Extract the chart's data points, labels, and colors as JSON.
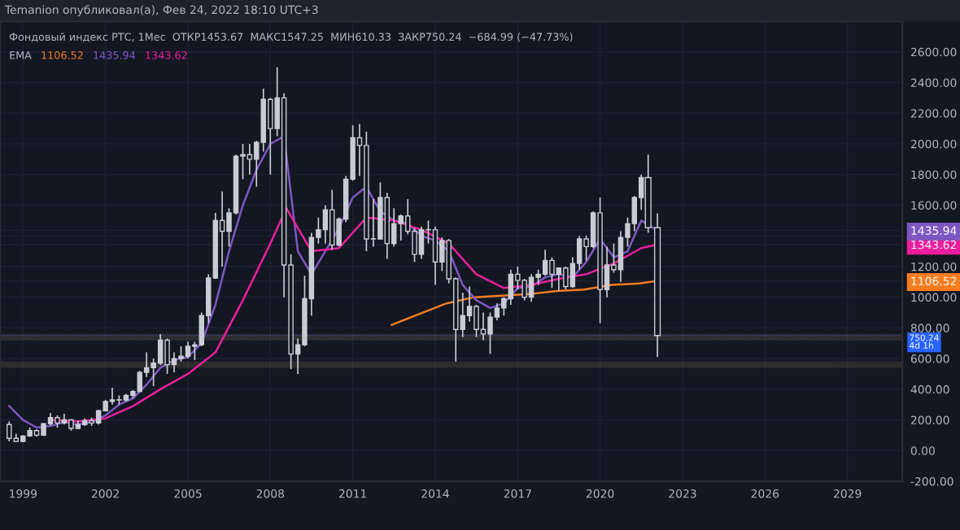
{
  "chart_data": {
    "type": "candlestick",
    "title": "Фондовый индекс РТС, 1Мес  ОТКР1453.67  МАКС1547.25  МИН610.33  ЗАКР750.24  −684.99 (−47.73%)",
    "subtitle": "Temanion опубликовал(а), Фев 24, 2022 18:10 UTC+3",
    "annotations": [
      "EMA"
    ],
    "color": "#c9ccd4",
    "x": [
      "1998-07",
      "1998-10",
      "1999-01",
      "1999-04",
      "1999-07",
      "1999-10",
      "2000-01",
      "2000-04",
      "2000-07",
      "2000-10",
      "2001-01",
      "2001-04",
      "2001-07",
      "2001-10",
      "2002-01",
      "2002-04",
      "2002-07",
      "2002-10",
      "2003-01",
      "2003-04",
      "2003-07",
      "2003-10",
      "2004-01",
      "2004-04",
      "2004-07",
      "2004-10",
      "2005-01",
      "2005-04",
      "2005-07",
      "2005-10",
      "2006-01",
      "2006-04",
      "2006-07",
      "2006-10",
      "2007-01",
      "2007-04",
      "2007-07",
      "2007-10",
      "2008-01",
      "2008-04",
      "2008-07",
      "2008-10",
      "2009-01",
      "2009-04",
      "2009-07",
      "2009-10",
      "2010-01",
      "2010-04",
      "2010-07",
      "2010-10",
      "2011-01",
      "2011-04",
      "2011-07",
      "2011-10",
      "2012-01",
      "2012-04",
      "2012-07",
      "2012-10",
      "2013-01",
      "2013-04",
      "2013-07",
      "2013-10",
      "2014-01",
      "2014-04",
      "2014-07",
      "2014-10",
      "2015-01",
      "2015-04",
      "2015-07",
      "2015-10",
      "2016-01",
      "2016-04",
      "2016-07",
      "2016-10",
      "2017-01",
      "2017-04",
      "2017-07",
      "2017-10",
      "2018-01",
      "2018-04",
      "2018-07",
      "2018-10",
      "2019-01",
      "2019-04",
      "2019-07",
      "2019-10",
      "2020-01",
      "2020-04",
      "2020-07",
      "2020-10",
      "2021-01",
      "2021-04",
      "2021-07",
      "2021-10",
      "2022-02"
    ],
    "ohlc": [
      [
        170,
        190,
        60,
        80
      ],
      [
        80,
        110,
        60,
        60
      ],
      [
        60,
        100,
        55,
        95
      ],
      [
        95,
        150,
        90,
        130
      ],
      [
        130,
        140,
        90,
        100
      ],
      [
        100,
        180,
        95,
        175
      ],
      [
        175,
        245,
        165,
        215
      ],
      [
        215,
        230,
        150,
        180
      ],
      [
        180,
        240,
        170,
        200
      ],
      [
        200,
        205,
        130,
        145
      ],
      [
        145,
        195,
        140,
        170
      ],
      [
        170,
        210,
        160,
        195
      ],
      [
        195,
        215,
        160,
        180
      ],
      [
        180,
        265,
        170,
        260
      ],
      [
        260,
        330,
        255,
        320
      ],
      [
        320,
        410,
        300,
        330
      ],
      [
        330,
        360,
        300,
        330
      ],
      [
        330,
        370,
        320,
        360
      ],
      [
        360,
        395,
        340,
        385
      ],
      [
        385,
        520,
        380,
        510
      ],
      [
        510,
        640,
        480,
        540
      ],
      [
        540,
        600,
        420,
        570
      ],
      [
        570,
        760,
        560,
        720
      ],
      [
        720,
        730,
        500,
        560
      ],
      [
        560,
        640,
        510,
        600
      ],
      [
        600,
        680,
        580,
        615
      ],
      [
        615,
        710,
        600,
        680
      ],
      [
        680,
        710,
        590,
        690
      ],
      [
        690,
        900,
        680,
        880
      ],
      [
        880,
        1150,
        830,
        1125
      ],
      [
        1125,
        1550,
        1120,
        1500
      ],
      [
        1500,
        1690,
        1200,
        1430
      ],
      [
        1430,
        1580,
        1330,
        1550
      ],
      [
        1550,
        1930,
        1540,
        1920
      ],
      [
        1920,
        2000,
        1770,
        1930
      ],
      [
        1930,
        2000,
        1800,
        1900
      ],
      [
        1900,
        2020,
        1720,
        2010
      ],
      [
        2010,
        2360,
        1950,
        2290
      ],
      [
        2290,
        2300,
        1800,
        2100
      ],
      [
        2100,
        2500,
        2050,
        2300
      ],
      [
        2300,
        2330,
        1000,
        1210
      ],
      [
        1210,
        1280,
        530,
        630
      ],
      [
        630,
        730,
        500,
        690
      ],
      [
        690,
        1140,
        680,
        990
      ],
      [
        990,
        1420,
        880,
        1390
      ],
      [
        1390,
        1520,
        1350,
        1440
      ],
      [
        1440,
        1600,
        1350,
        1570
      ],
      [
        1570,
        1700,
        1310,
        1340
      ],
      [
        1340,
        1520,
        1330,
        1510
      ],
      [
        1510,
        1790,
        1490,
        1770
      ],
      [
        1770,
        2120,
        1760,
        2040
      ],
      [
        2040,
        2130,
        1790,
        1990
      ],
      [
        1990,
        2080,
        1300,
        1380
      ],
      [
        1380,
        1640,
        1330,
        1380
      ],
      [
        1380,
        1750,
        1380,
        1650
      ],
      [
        1650,
        1680,
        1250,
        1350
      ],
      [
        1350,
        1580,
        1330,
        1480
      ],
      [
        1480,
        1540,
        1370,
        1530
      ],
      [
        1530,
        1640,
        1410,
        1430
      ],
      [
        1430,
        1450,
        1230,
        1280
      ],
      [
        1280,
        1460,
        1250,
        1440
      ],
      [
        1440,
        1500,
        1350,
        1440
      ],
      [
        1440,
        1460,
        1080,
        1230
      ],
      [
        1230,
        1390,
        1170,
        1370
      ],
      [
        1370,
        1380,
        1090,
        1120
      ],
      [
        1120,
        1130,
        580,
        790
      ],
      [
        790,
        1030,
        740,
        880
      ],
      [
        880,
        1070,
        840,
        940
      ],
      [
        940,
        950,
        740,
        790
      ],
      [
        790,
        900,
        720,
        760
      ],
      [
        760,
        900,
        630,
        870
      ],
      [
        870,
        960,
        850,
        930
      ],
      [
        930,
        1000,
        880,
        990
      ],
      [
        990,
        1180,
        950,
        1150
      ],
      [
        1150,
        1200,
        1050,
        1110
      ],
      [
        1110,
        1120,
        980,
        1000
      ],
      [
        1000,
        1150,
        970,
        1130
      ],
      [
        1130,
        1180,
        1080,
        1150
      ],
      [
        1150,
        1310,
        1140,
        1240
      ],
      [
        1240,
        1260,
        1060,
        1150
      ],
      [
        1150,
        1190,
        1040,
        1190
      ],
      [
        1190,
        1200,
        1050,
        1070
      ],
      [
        1070,
        1260,
        1060,
        1220
      ],
      [
        1220,
        1400,
        1180,
        1380
      ],
      [
        1380,
        1400,
        1240,
        1330
      ],
      [
        1330,
        1560,
        1320,
        1550
      ],
      [
        1550,
        1650,
        830,
        1050
      ],
      [
        1050,
        1330,
        1000,
        1210
      ],
      [
        1210,
        1350,
        1160,
        1180
      ],
      [
        1180,
        1430,
        1100,
        1390
      ],
      [
        1390,
        1520,
        1330,
        1480
      ],
      [
        1480,
        1660,
        1430,
        1650
      ],
      [
        1650,
        1800,
        1570,
        1780
      ],
      [
        1780,
        1930,
        1420,
        1453.67
      ],
      [
        1453.67,
        1547.25,
        610.33,
        750.24
      ]
    ],
    "series": [
      {
        "type": "line",
        "name": "1106.52",
        "color": "#f57c1f",
        "x": [
          "2012-06",
          "2013-06",
          "2014-06",
          "2015-06",
          "2016-06",
          "2017-06",
          "2018-06",
          "2019-06",
          "2020-06",
          "2021-06",
          "2022-02"
        ],
        "values": [
          820,
          890,
          960,
          1000,
          1010,
          1020,
          1040,
          1050,
          1080,
          1090,
          1106.52
        ]
      },
      {
        "type": "line",
        "name": "1435.94",
        "color": "#7e57c2",
        "x": [
          "1998-07",
          "1999-01",
          "1999-07",
          "2000-01",
          "2000-07",
          "2001-01",
          "2001-07",
          "2002-01",
          "2002-07",
          "2003-01",
          "2003-07",
          "2004-01",
          "2004-07",
          "2005-01",
          "2005-07",
          "2006-01",
          "2006-07",
          "2007-01",
          "2007-07",
          "2008-01",
          "2008-07",
          "2009-01",
          "2009-07",
          "2010-01",
          "2010-07",
          "2011-01",
          "2011-07",
          "2012-01",
          "2012-07",
          "2013-01",
          "2013-07",
          "2014-01",
          "2014-07",
          "2015-01",
          "2015-07",
          "2016-01",
          "2016-07",
          "2017-01",
          "2017-07",
          "2018-01",
          "2018-07",
          "2019-01",
          "2019-07",
          "2020-01",
          "2020-07",
          "2021-01",
          "2021-07",
          "2022-02"
        ],
        "values": [
          290,
          200,
          150,
          160,
          185,
          170,
          185,
          230,
          300,
          340,
          430,
          540,
          590,
          610,
          700,
          950,
          1300,
          1600,
          1830,
          2000,
          2050,
          1300,
          1150,
          1300,
          1450,
          1650,
          1720,
          1560,
          1500,
          1480,
          1400,
          1370,
          1300,
          1080,
          980,
          930,
          960,
          1060,
          1070,
          1130,
          1150,
          1130,
          1230,
          1380,
          1260,
          1300,
          1500,
          1435.94
        ]
      },
      {
        "type": "line",
        "name": "1343.62",
        "color": "#e91e9c",
        "x": [
          "2000-01",
          "2001-01",
          "2002-01",
          "2003-01",
          "2004-01",
          "2005-01",
          "2006-01",
          "2007-01",
          "2008-01",
          "2008-08",
          "2009-07",
          "2010-07",
          "2011-07",
          "2012-07",
          "2013-07",
          "2014-07",
          "2015-07",
          "2016-07",
          "2017-07",
          "2018-07",
          "2019-07",
          "2020-07",
          "2021-07",
          "2022-02"
        ],
        "values": [
          200,
          190,
          210,
          290,
          400,
          500,
          640,
          980,
          1350,
          1580,
          1300,
          1320,
          1520,
          1500,
          1440,
          1350,
          1150,
          1060,
          1080,
          1120,
          1150,
          1220,
          1320,
          1343.62
        ]
      }
    ],
    "bands": [
      {
        "axis": "y",
        "from": 725,
        "to": 755,
        "color": "#c8a46e"
      },
      {
        "axis": "y",
        "from": 545,
        "to": 575,
        "color": "#c8a46e"
      }
    ],
    "ref_lines": [
      {
        "axis": "y",
        "value": 750.24,
        "label": "750.24\n4d 1h",
        "color": "#2962ff",
        "line_style": "dotted"
      }
    ],
    "xlim": [
      "1998-03",
      "2031-01"
    ],
    "xticks": [
      {
        "value": "1999-01",
        "label": "1999"
      },
      {
        "value": "2002-01",
        "label": "2002"
      },
      {
        "value": "2005-01",
        "label": "2005"
      },
      {
        "value": "2008-01",
        "label": "2008"
      },
      {
        "value": "2011-01",
        "label": "2011"
      },
      {
        "value": "2014-01",
        "label": "2014"
      },
      {
        "value": "2017-01",
        "label": "2017"
      },
      {
        "value": "2020-01",
        "label": "2020"
      },
      {
        "value": "2023-01",
        "label": "2023"
      },
      {
        "value": "2026-01",
        "label": "2026"
      },
      {
        "value": "2029-01",
        "label": "2029"
      }
    ],
    "ylim": [
      -200,
      2800
    ],
    "yticks": [
      {
        "value": -200,
        "label": "-200.00"
      },
      {
        "value": 0,
        "label": "0.00"
      },
      {
        "value": 200,
        "label": "200.00"
      },
      {
        "value": 400,
        "label": "400.00"
      },
      {
        "value": 600,
        "label": "600.00"
      },
      {
        "value": 800,
        "label": "800.00"
      },
      {
        "value": 1000,
        "label": "1000.00"
      },
      {
        "value": 1106.52,
        "label": "1106.52"
      },
      {
        "value": 1200,
        "label": "1200.00"
      },
      {
        "value": 1343.62,
        "label": "1343.62"
      },
      {
        "value": 1400,
        "label": null
      },
      {
        "value": 1435.94,
        "label": "1435.94"
      },
      {
        "value": 1600,
        "label": "1600.00"
      },
      {
        "value": 1800,
        "label": "1800.00"
      },
      {
        "value": 2000,
        "label": "2000.00"
      },
      {
        "value": 2200,
        "label": "2200.00"
      },
      {
        "value": 2400,
        "label": "2400.00"
      },
      {
        "value": 2600,
        "label": "2600.00"
      }
    ],
    "grid": true,
    "legend": "top left",
    "marker": "none",
    "line_style": "solid"
  }
}
